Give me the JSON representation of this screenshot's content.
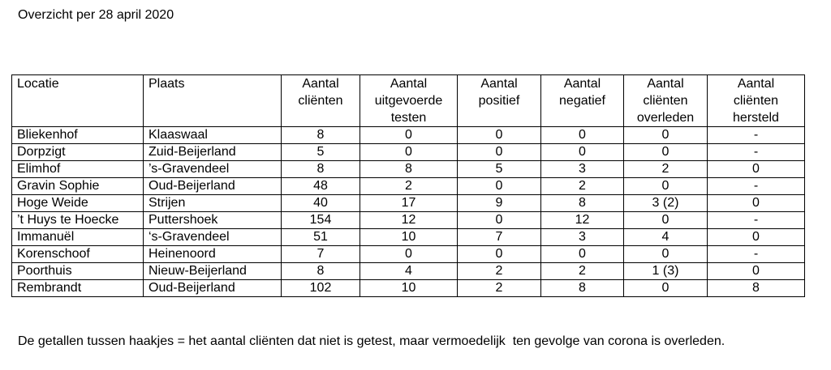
{
  "header": {
    "title": "Overzicht per 28 april 2020"
  },
  "table": {
    "columns": [
      [
        "Locatie"
      ],
      [
        "Plaats"
      ],
      [
        "Aantal",
        "cliënten"
      ],
      [
        "Aantal",
        "uitgevoerde",
        "testen"
      ],
      [
        "Aantal",
        "positief"
      ],
      [
        "Aantal",
        "negatief"
      ],
      [
        "Aantal",
        "cliënten",
        "overleden"
      ],
      [
        "Aantal",
        "cliënten",
        "hersteld"
      ]
    ],
    "rows": [
      [
        "Bliekenhof",
        "Klaaswaal",
        "8",
        "0",
        "0",
        "0",
        "0",
        "-"
      ],
      [
        "Dorpzigt",
        "Zuid-Beijerland",
        "5",
        "0",
        "0",
        "0",
        "0",
        "-"
      ],
      [
        "Elimhof",
        "’s-Gravendeel",
        "8",
        "8",
        "5",
        "3",
        "2",
        "0"
      ],
      [
        "Gravin Sophie",
        "Oud-Beijerland",
        "48",
        "2",
        "0",
        "2",
        "0",
        "-"
      ],
      [
        "Hoge Weide",
        "Strijen",
        "40",
        "17",
        "9",
        "8",
        "3 (2)",
        "0"
      ],
      [
        "’t Huys te Hoecke",
        "Puttershoek",
        "154",
        "12",
        "0",
        "12",
        "0",
        "-"
      ],
      [
        "Immanuël",
        "‘s-Gravendeel",
        "51",
        "10",
        "7",
        "3",
        "4",
        "0"
      ],
      [
        "Korenschoof",
        "Heinenoord",
        "7",
        "0",
        "0",
        "0",
        "0",
        "-"
      ],
      [
        "Poorthuis",
        "Nieuw-Beijerland",
        "8",
        "4",
        "2",
        "2",
        "1 (3)",
        "0"
      ],
      [
        "Rembrandt",
        "Oud-Beijerland",
        "102",
        "10",
        "2",
        "8",
        "0",
        "8"
      ]
    ]
  },
  "footnote": "De getallen tussen haakjes = het aantal cliënten dat niet is getest, maar vermoedelijk  ten gevolge van corona is overleden."
}
